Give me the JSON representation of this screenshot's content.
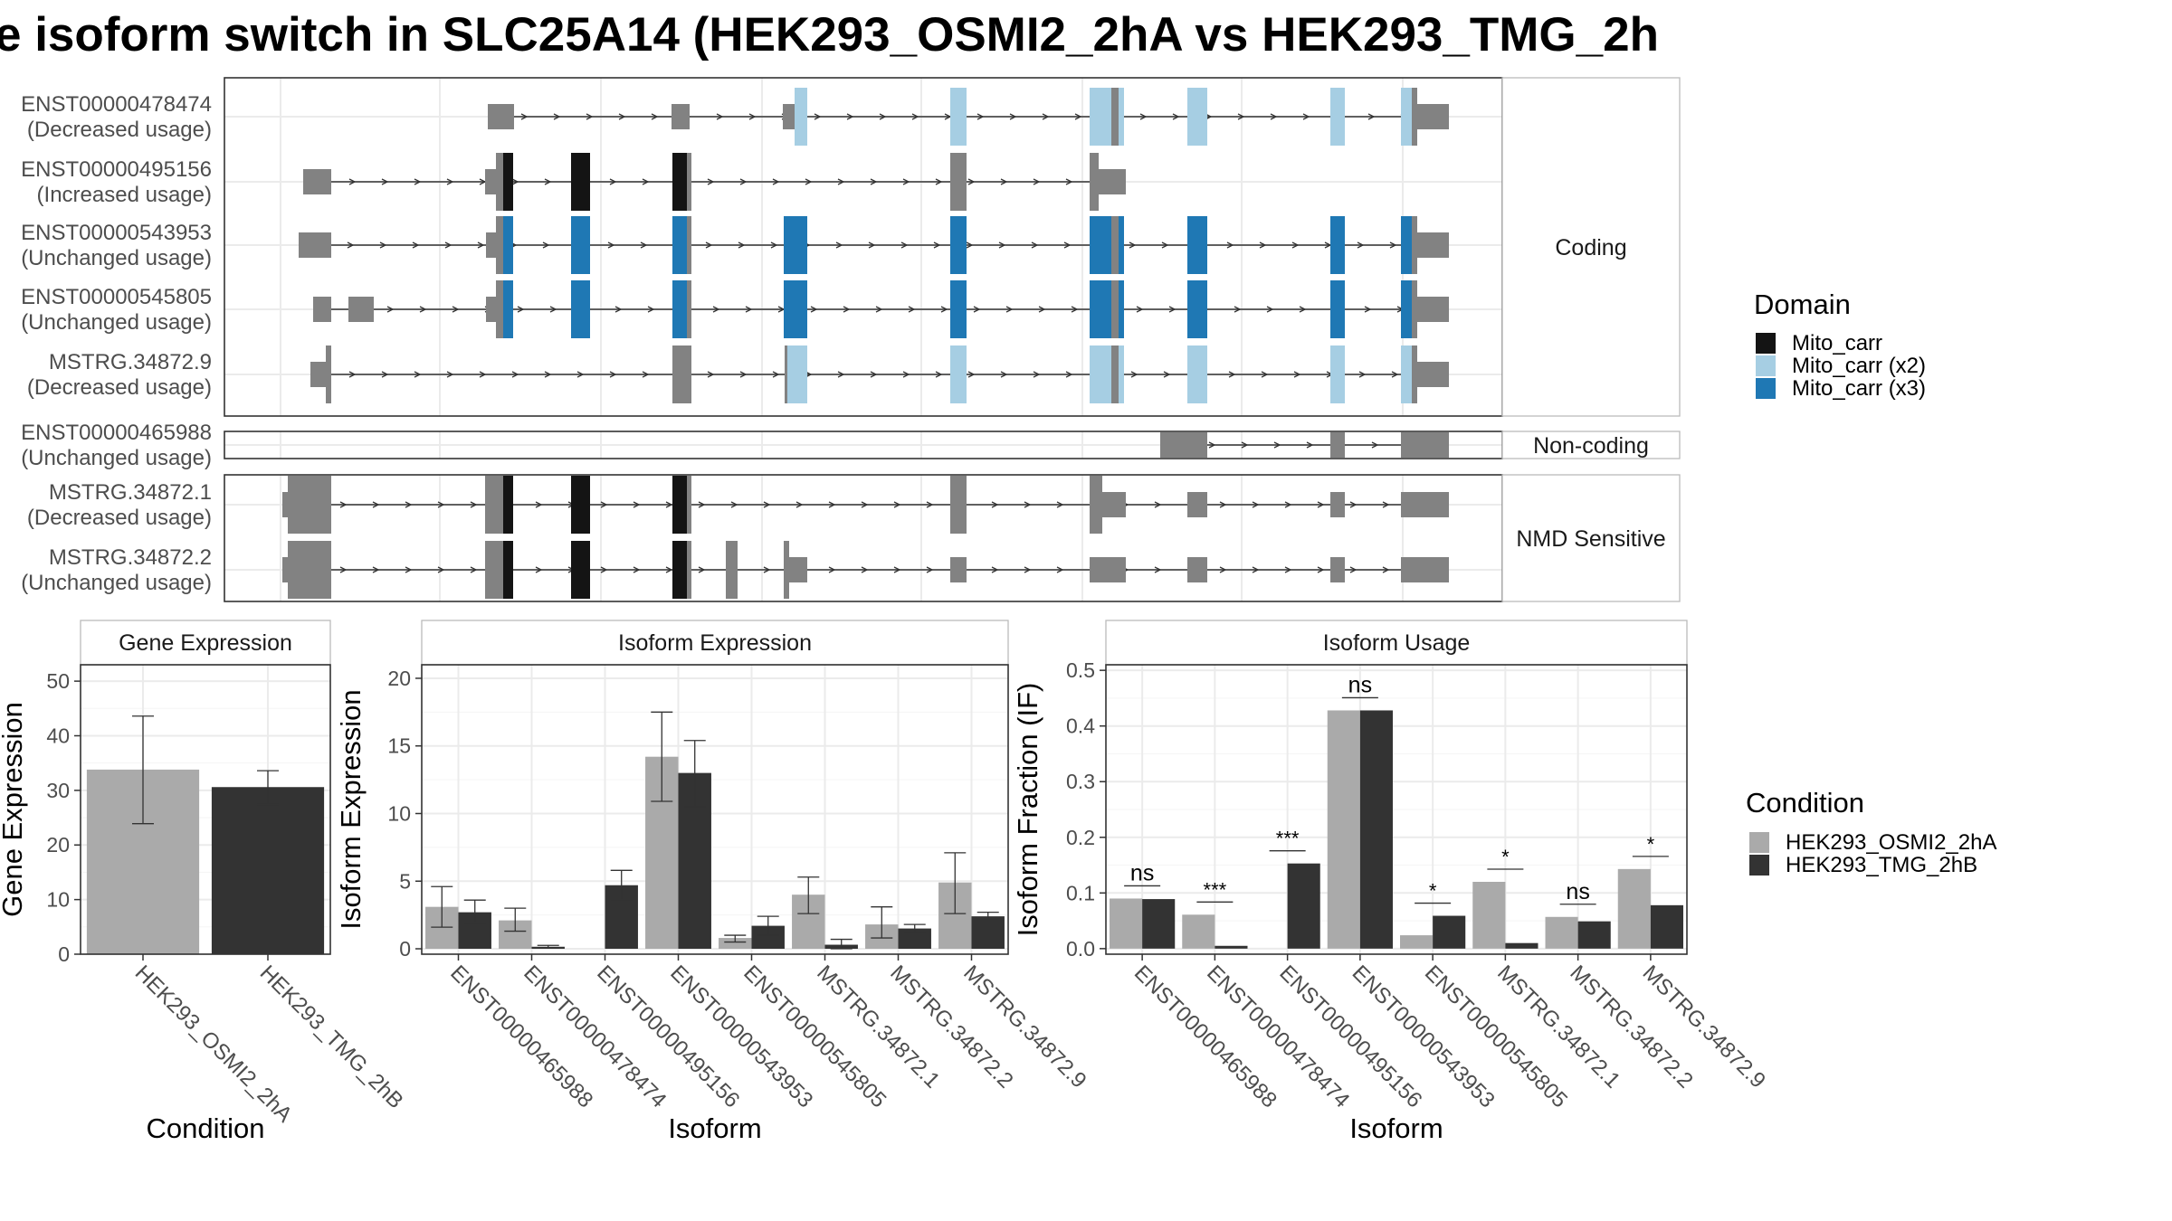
{
  "figure": {
    "title": "e isoform switch in SLC25A14 (HEK293_OSMI2_2hA vs HEK293_TMG_2h",
    "colors": {
      "grey_exon": "#828282",
      "mito_carr": "#141414",
      "mito_carr_x2": "#a6cee3",
      "mito_carr_x3": "#1f78b4",
      "cond_a": "#aaaaaa",
      "cond_b": "#333333"
    }
  },
  "transcripts": {
    "groups": [
      {
        "label": "Coding",
        "rows": [
          {
            "id": "ENST00000478474",
            "usage": "(Decreased usage)"
          },
          {
            "id": "ENST00000495156",
            "usage": "(Increased usage)"
          },
          {
            "id": "ENST00000543953",
            "usage": "(Unchanged usage)"
          },
          {
            "id": "ENST00000545805",
            "usage": "(Unchanged usage)"
          },
          {
            "id": "MSTRG.34872.9",
            "usage": "(Decreased usage)"
          }
        ]
      },
      {
        "label": "Non-coding",
        "rows": [
          {
            "id": "ENST00000465988",
            "usage": "(Unchanged usage)"
          }
        ]
      },
      {
        "label": "NMD Sensitive",
        "rows": [
          {
            "id": "MSTRG.34872.1",
            "usage": "(Decreased usage)"
          },
          {
            "id": "MSTRG.34872.2",
            "usage": "(Unchanged usage)"
          }
        ]
      }
    ]
  },
  "legend_domain": {
    "title": "Domain",
    "items": [
      {
        "label": "Mito_carr",
        "color": "#141414"
      },
      {
        "label": "Mito_carr (x2)",
        "color": "#a6cee3"
      },
      {
        "label": "Mito_carr (x3)",
        "color": "#1f78b4"
      }
    ]
  },
  "legend_condition": {
    "title": "Condition",
    "items": [
      {
        "label": "HEK293_OSMI2_2hA",
        "color": "#aaaaaa"
      },
      {
        "label": "HEK293_TMG_2hB",
        "color": "#333333"
      }
    ]
  },
  "chart_data": [
    {
      "type": "bar",
      "title": "Gene Expression",
      "xlabel": "Condition",
      "ylabel": "Gene Expression",
      "ylim": [
        0,
        53
      ],
      "yticks": [
        0,
        10,
        20,
        30,
        40,
        50
      ],
      "categories": [
        "HEK293_OSMI2_2hA",
        "HEK293_TMG_2hB"
      ],
      "values": [
        33.8,
        30.6
      ],
      "error_low": [
        23.9,
        27.4
      ],
      "error_high": [
        43.6,
        33.6
      ]
    },
    {
      "type": "bar",
      "title": "Isoform Expression",
      "xlabel": "Isoform",
      "ylabel": "Isoform Expression",
      "ylim": [
        -0.4,
        21
      ],
      "yticks": [
        0,
        5,
        10,
        15,
        20
      ],
      "categories": [
        "ENST00000465988",
        "ENST00000478474",
        "ENST00000495156",
        "ENST00000543953",
        "ENST00000545805",
        "MSTRG.34872.1",
        "MSTRG.34872.2",
        "MSTRG.34872.9"
      ],
      "series": [
        {
          "name": "HEK293_OSMI2_2hA",
          "values": [
            3.1,
            2.1,
            0.0,
            14.2,
            0.8,
            4.0,
            1.8,
            4.9
          ],
          "error_low": [
            1.6,
            1.3,
            0.0,
            10.9,
            0.5,
            2.6,
            0.8,
            2.6
          ],
          "error_high": [
            4.6,
            3.0,
            0.0,
            17.5,
            1.0,
            5.3,
            3.1,
            7.1
          ]
        },
        {
          "name": "HEK293_TMG_2hB",
          "values": [
            2.7,
            0.15,
            4.7,
            13.0,
            1.7,
            0.3,
            1.5,
            2.4
          ],
          "error_low": [
            1.9,
            0.05,
            3.6,
            10.5,
            1.0,
            0.0,
            1.2,
            2.2
          ],
          "error_high": [
            3.6,
            0.25,
            5.8,
            15.4,
            2.4,
            0.7,
            1.8,
            2.7
          ]
        }
      ]
    },
    {
      "type": "bar",
      "title": "Isoform Usage",
      "xlabel": "Isoform",
      "ylabel": "Isoform Fraction (IF)",
      "ylim": [
        -0.01,
        0.51
      ],
      "yticks": [
        0.0,
        0.1,
        0.2,
        0.3,
        0.4,
        0.5
      ],
      "yticklabels": [
        "0.0",
        "0.1",
        "0.2",
        "0.3",
        "0.4",
        "0.5"
      ],
      "categories": [
        "ENST00000465988",
        "ENST00000478474",
        "ENST00000495156",
        "ENST00000543953",
        "ENST00000545805",
        "MSTRG.34872.1",
        "MSTRG.34872.2",
        "MSTRG.34872.9"
      ],
      "series": [
        {
          "name": "HEK293_OSMI2_2hA",
          "values": [
            0.09,
            0.061,
            0.0,
            0.428,
            0.024,
            0.12,
            0.057,
            0.143
          ]
        },
        {
          "name": "HEK293_TMG_2hB",
          "values": [
            0.089,
            0.005,
            0.153,
            0.428,
            0.059,
            0.01,
            0.049,
            0.078
          ]
        }
      ],
      "significance": [
        "ns",
        "***",
        "***",
        "ns",
        "*",
        "*",
        "ns",
        "*"
      ]
    }
  ]
}
